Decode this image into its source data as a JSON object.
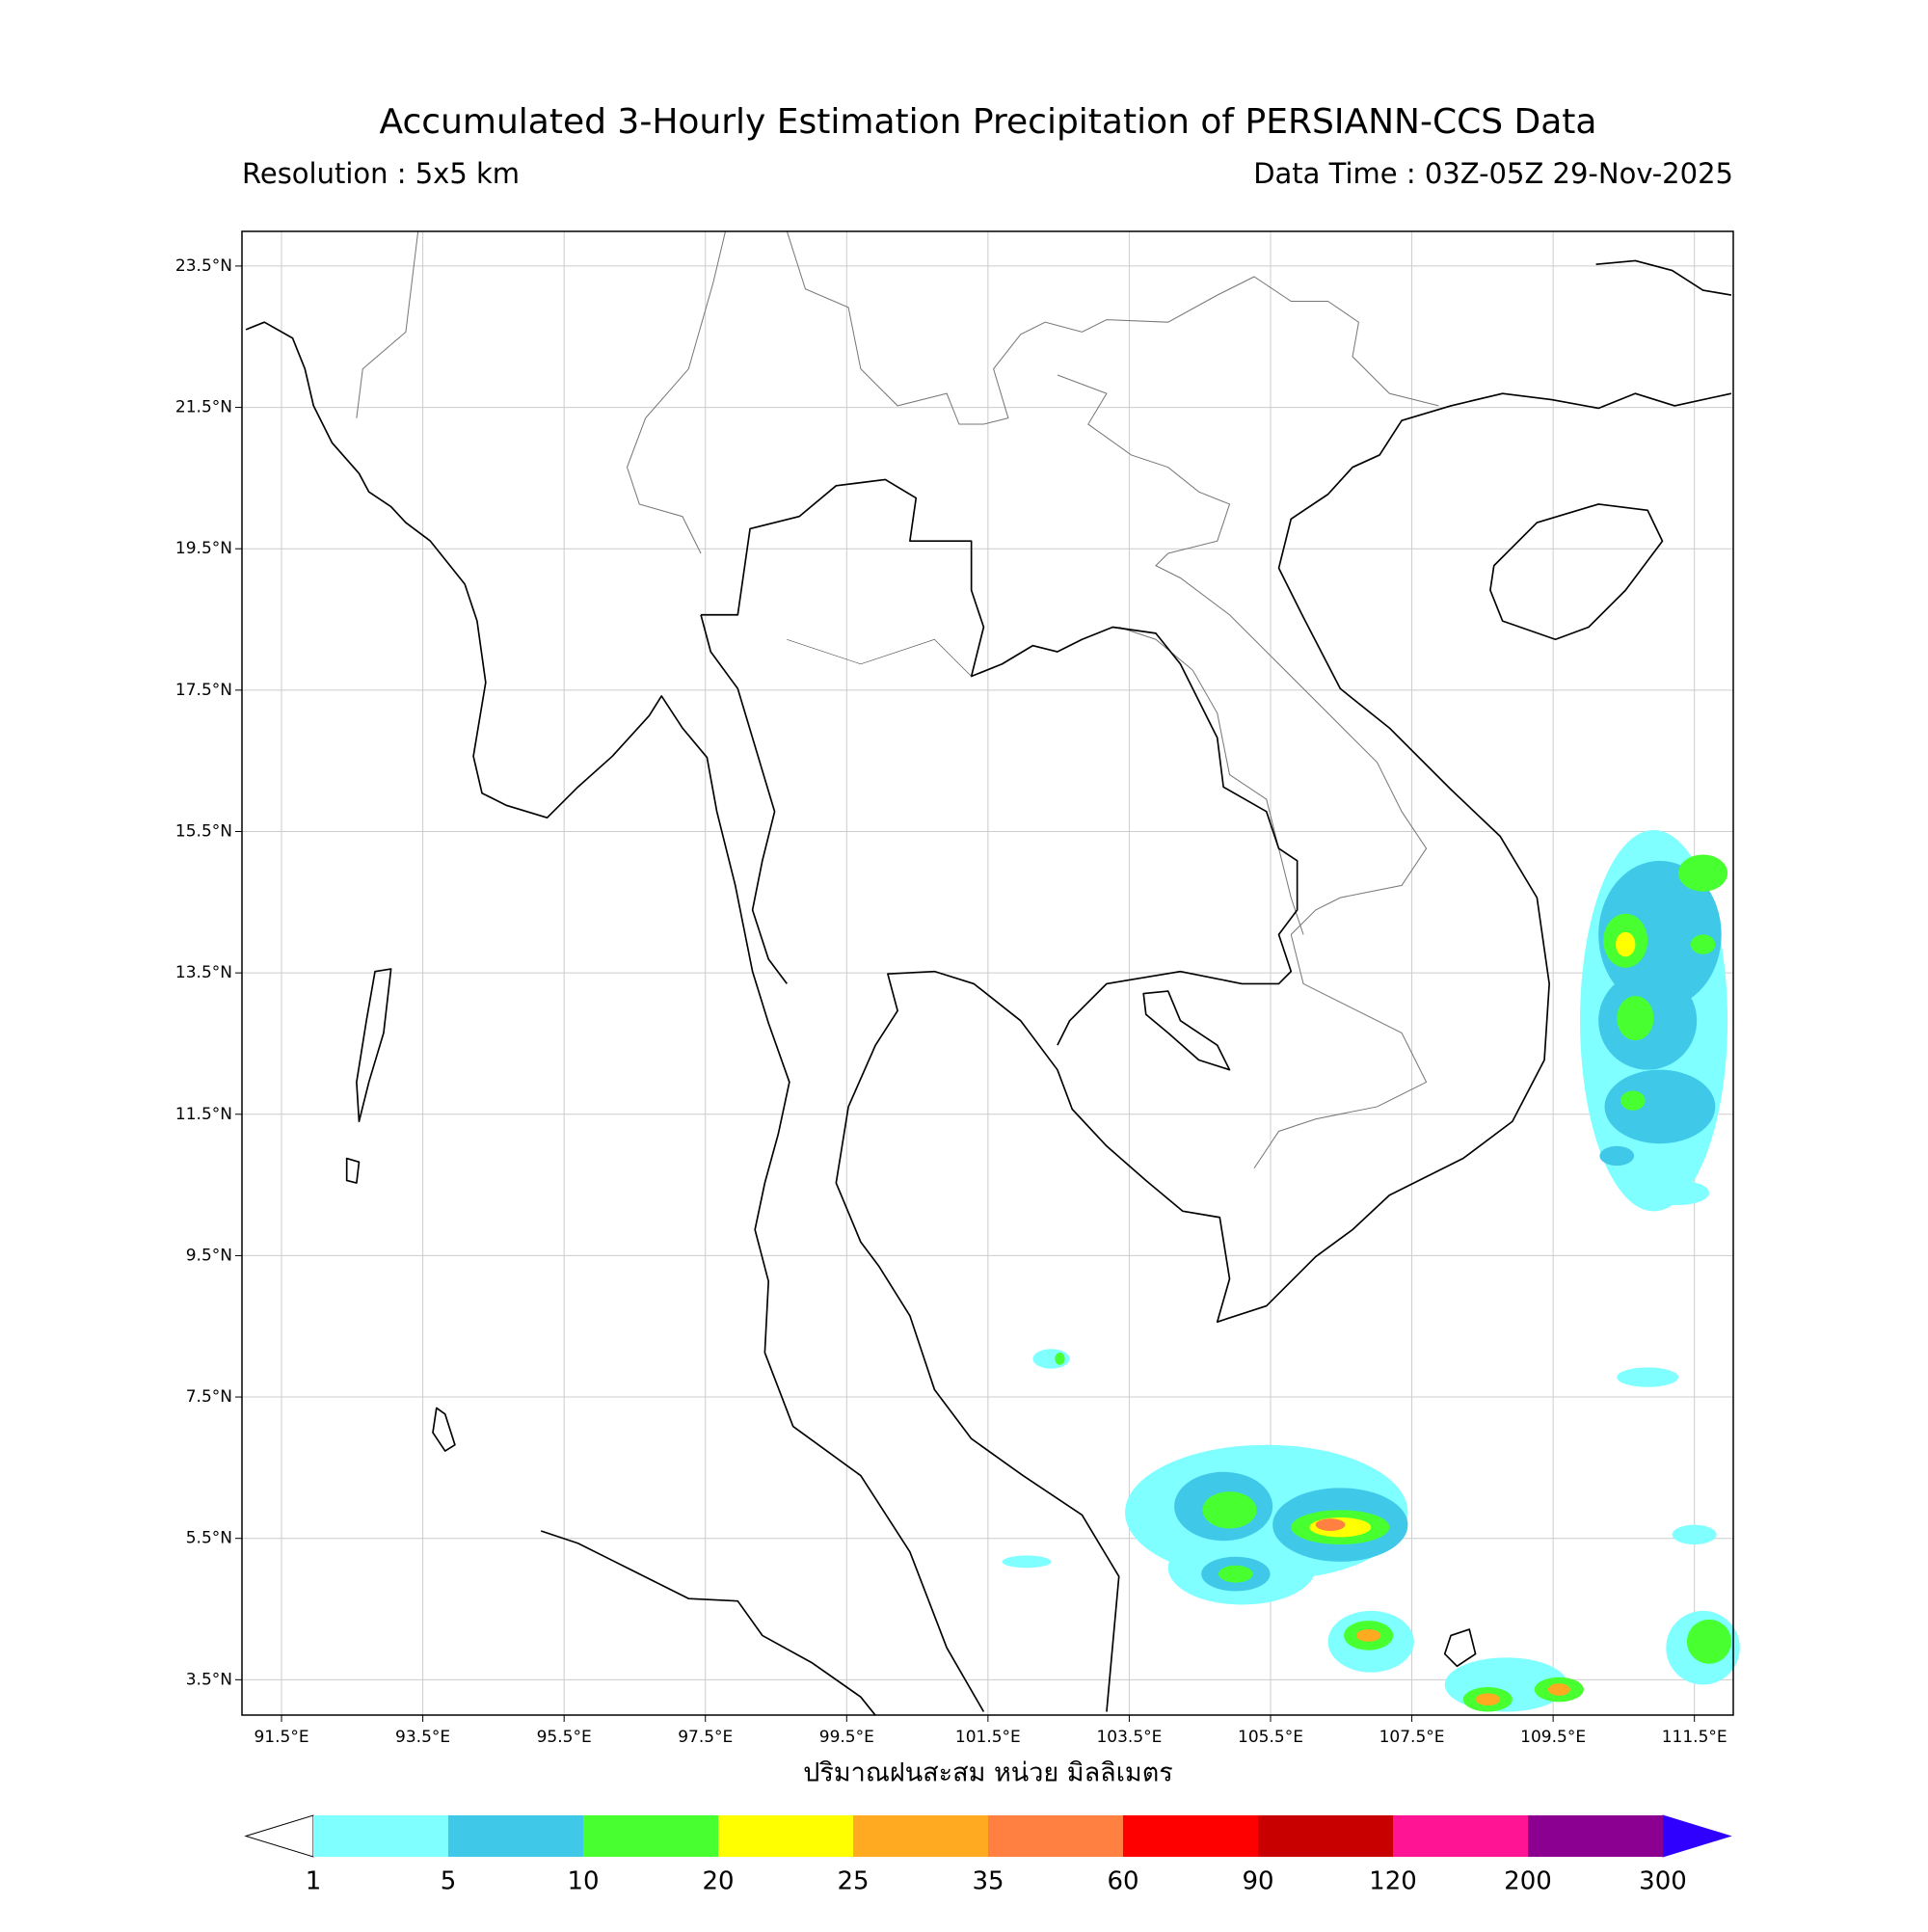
{
  "title": "Accumulated 3-Hourly Estimation Precipitation of PERSIANN-CCS Data",
  "resolution": "Resolution : 5x5 km",
  "data_time": "Data Time : 03Z-05Z 29-Nov-2025",
  "map": {
    "lon_range": [
      90.94,
      112.05
    ],
    "lat_range": [
      3.0,
      23.99
    ],
    "grid": true,
    "lon_ticks": [
      {
        "value": 91.5,
        "label": "91.5°E"
      },
      {
        "value": 93.5,
        "label": "93.5°E"
      },
      {
        "value": 95.5,
        "label": "95.5°E"
      },
      {
        "value": 97.5,
        "label": "97.5°E"
      },
      {
        "value": 99.5,
        "label": "99.5°E"
      },
      {
        "value": 101.5,
        "label": "101.5°E"
      },
      {
        "value": 103.5,
        "label": "103.5°E"
      },
      {
        "value": 105.5,
        "label": "105.5°E"
      },
      {
        "value": 107.5,
        "label": "107.5°E"
      },
      {
        "value": 109.5,
        "label": "109.5°E"
      },
      {
        "value": 111.5,
        "label": "111.5°E"
      }
    ],
    "lat_ticks": [
      {
        "value": 23.5,
        "label": "23.5°N"
      },
      {
        "value": 21.5,
        "label": "21.5°N"
      },
      {
        "value": 19.5,
        "label": "19.5°N"
      },
      {
        "value": 17.5,
        "label": "17.5°N"
      },
      {
        "value": 15.5,
        "label": "15.5°N"
      },
      {
        "value": 13.5,
        "label": "13.5°N"
      },
      {
        "value": 11.5,
        "label": "11.5°N"
      },
      {
        "value": 9.5,
        "label": "9.5°N"
      },
      {
        "value": 7.5,
        "label": "7.5°N"
      },
      {
        "value": 5.5,
        "label": "5.5°N"
      },
      {
        "value": 3.5,
        "label": "3.5°N"
      }
    ]
  },
  "colorbar": {
    "label": "ปริมาณฝนสะสม หน่วย มิลลิเมตร",
    "levels": [
      1,
      5,
      10,
      20,
      25,
      35,
      60,
      90,
      120,
      200,
      300
    ],
    "colors": [
      "#7fffff",
      "#40c8e8",
      "#48ff30",
      "#ffff00",
      "#ffaa20",
      "#ff8040",
      "#ff0000",
      "#c80000",
      "#ff1493",
      "#8b0090"
    ],
    "under_color": "#ffffff",
    "over_color": "#3000ff"
  }
}
